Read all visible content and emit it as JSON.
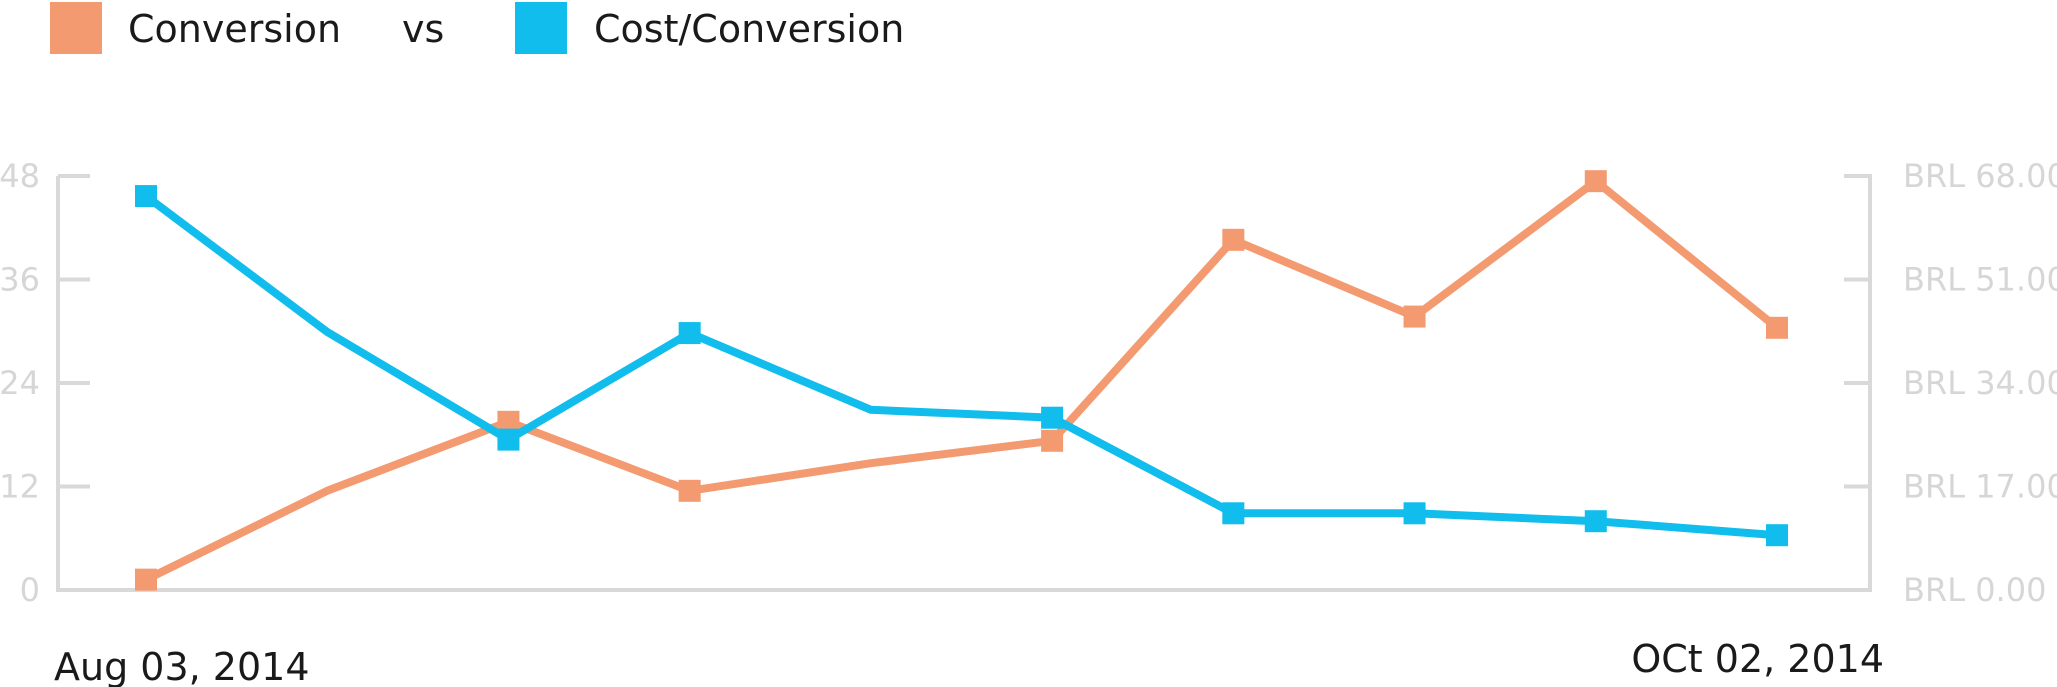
{
  "legend": {
    "series1_label": "Conversion",
    "separator": "vs",
    "series2_label": "Cost/Conversion"
  },
  "dates": {
    "start": "Aug 03, 2014",
    "end": "OCt 02, 2014"
  },
  "chart_data": {
    "type": "line",
    "title": "",
    "legend_position": "top-left",
    "grid": false,
    "x_count": 10,
    "y_left": {
      "ticks": [
        0,
        12,
        24,
        36,
        48
      ],
      "tick_labels": [
        "0",
        "12",
        "24",
        "36",
        "48"
      ],
      "range": [
        0,
        48
      ]
    },
    "y_right": {
      "ticks": [
        0,
        17,
        34,
        51,
        68
      ],
      "tick_labels": [
        "BRL 0.00",
        "BRL 17.00",
        "BRL 34.00",
        "BRL 51.00",
        "BRL 68.00"
      ],
      "range": [
        0,
        68
      ]
    },
    "series": [
      {
        "name": "Conversion",
        "axis": "left",
        "color": "#f39a70",
        "values": [
          1.2,
          11.5,
          19.5,
          11.5,
          14.7,
          17.3,
          40.6,
          31.7,
          47.4,
          30.4
        ],
        "markers": [
          true,
          false,
          true,
          true,
          false,
          true,
          true,
          true,
          true,
          true
        ]
      },
      {
        "name": "Cost/Conversion",
        "axis": "right",
        "color": "#10bdec",
        "values": [
          64.7,
          42.4,
          24.7,
          42.2,
          29.6,
          28.3,
          12.6,
          12.6,
          11.3,
          9.0
        ],
        "markers": [
          true,
          false,
          true,
          true,
          false,
          true,
          true,
          true,
          true,
          true
        ]
      }
    ]
  }
}
